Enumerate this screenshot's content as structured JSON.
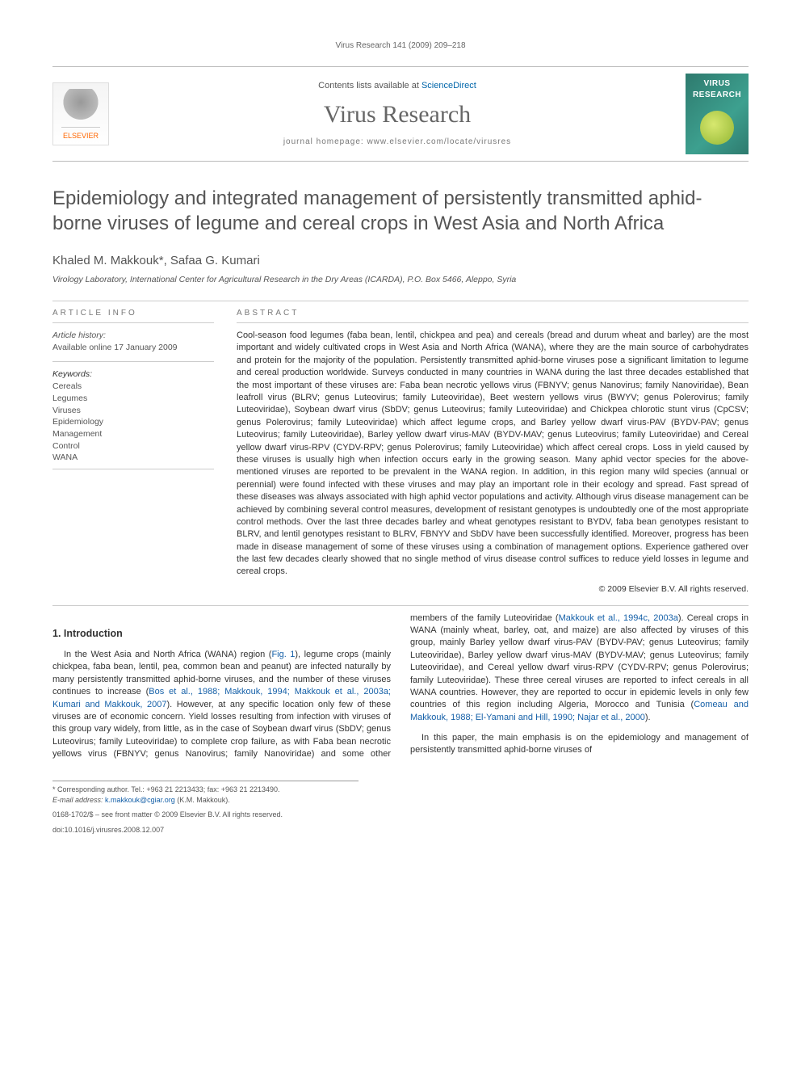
{
  "running_head": "Virus Research 141 (2009) 209–218",
  "masthead": {
    "contents_prefix": "Contents lists available at ",
    "contents_link": "ScienceDirect",
    "journal": "Virus Research",
    "homepage_prefix": "journal homepage: ",
    "homepage_url": "www.elsevier.com/locate/virusres",
    "publisher": "ELSEVIER",
    "cover_top1": "VIRUS",
    "cover_top2": "RESEARCH"
  },
  "title": "Epidemiology and integrated management of persistently transmitted aphid-borne viruses of legume and cereal crops in West Asia and North Africa",
  "authors": "Khaled M. Makkouk*, Safaa G. Kumari",
  "affiliation": "Virology Laboratory, International Center for Agricultural Research in the Dry Areas (ICARDA), P.O. Box 5466, Aleppo, Syria",
  "info": {
    "head": "ARTICLE INFO",
    "history_label": "Article history:",
    "history_text": "Available online 17 January 2009",
    "keywords_label": "Keywords:",
    "keywords": [
      "Cereals",
      "Legumes",
      "Viruses",
      "Epidemiology",
      "Management",
      "Control",
      "WANA"
    ]
  },
  "abstract": {
    "head": "ABSTRACT",
    "text": "Cool-season food legumes (faba bean, lentil, chickpea and pea) and cereals (bread and durum wheat and barley) are the most important and widely cultivated crops in West Asia and North Africa (WANA), where they are the main source of carbohydrates and protein for the majority of the population. Persistently transmitted aphid-borne viruses pose a significant limitation to legume and cereal production worldwide. Surveys conducted in many countries in WANA during the last three decades established that the most important of these viruses are: Faba bean necrotic yellows virus (FBNYV; genus Nanovirus; family Nanoviridae), Bean leafroll virus (BLRV; genus Luteovirus; family Luteoviridae), Beet western yellows virus (BWYV; genus Polerovirus; family Luteoviridae), Soybean dwarf virus (SbDV; genus Luteovirus; family Luteoviridae) and Chickpea chlorotic stunt virus (CpCSV; genus Polerovirus; family Luteoviridae) which affect legume crops, and Barley yellow dwarf virus-PAV (BYDV-PAV; genus Luteovirus; family Luteoviridae), Barley yellow dwarf virus-MAV (BYDV-MAV; genus Luteovirus; family Luteoviridae) and Cereal yellow dwarf virus-RPV (CYDV-RPV; genus Polerovirus; family Luteoviridae) which affect cereal crops. Loss in yield caused by these viruses is usually high when infection occurs early in the growing season. Many aphid vector species for the above-mentioned viruses are reported to be prevalent in the WANA region. In addition, in this region many wild species (annual or perennial) were found infected with these viruses and may play an important role in their ecology and spread. Fast spread of these diseases was always associated with high aphid vector populations and activity. Although virus disease management can be achieved by combining several control measures, development of resistant genotypes is undoubtedly one of the most appropriate control methods. Over the last three decades barley and wheat genotypes resistant to BYDV, faba bean genotypes resistant to BLRV, and lentil genotypes resistant to BLRV, FBNYV and SbDV have been successfully identified. Moreover, progress has been made in disease management of some of these viruses using a combination of management options. Experience gathered over the last few decades clearly showed that no single method of virus disease control suffices to reduce yield losses in legume and cereal crops.",
    "copyright": "© 2009 Elsevier B.V. All rights reserved."
  },
  "intro": {
    "head": "1. Introduction",
    "p1_a": "In the West Asia and North Africa (WANA) region (",
    "fig1": "Fig. 1",
    "p1_b": "), legume crops (mainly chickpea, faba bean, lentil, pea, common bean and peanut) are infected naturally by many persistently transmitted aphid-borne viruses, and the number of these viruses continues to increase (",
    "refs1": "Bos et al., 1988; Makkouk, 1994; Makkouk et al., 2003a; Kumari and Makkouk, 2007",
    "p1_c": "). However, at any specific location only few of these viruses are of economic concern. Yield losses resulting from infection with viruses of this group vary widely, from little, as in the case of Soybean dwarf virus (SbDV; genus Luteovirus; family Luteoviridae) to complete crop failure, as with Faba bean necrotic yellows virus (FBNYV; genus Nanovirus; family Nanoviridae) and some other members of the family Luteoviridae (",
    "refs2": "Makkouk et al., 1994c, 2003a",
    "p1_d": "). Cereal crops in WANA (mainly wheat, barley, oat, and maize) are also affected by viruses of this group, mainly Barley yellow dwarf virus-PAV (BYDV-PAV; genus Luteovirus; family Luteoviridae), Barley yellow dwarf virus-MAV (BYDV-MAV; genus Luteovirus; family Luteoviridae), and Cereal yellow dwarf virus-RPV (CYDV-RPV; genus Polerovirus; family Luteoviridae). These three cereal viruses are reported to infect cereals in all WANA countries. However, they are reported to occur in epidemic levels in only few countries of this region including Algeria, Morocco and Tunisia (",
    "refs3": "Comeau and Makkouk, 1988; El-Yamani and Hill, 1990; Najar et al., 2000",
    "p1_e": ").",
    "p2": "In this paper, the main emphasis is on the epidemiology and management of persistently transmitted aphid-borne viruses of"
  },
  "footnotes": {
    "corr": "* Corresponding author. Tel.: +963 21 2213433; fax: +963 21 2213490.",
    "email_label": "E-mail address: ",
    "email": "k.makkouk@cgiar.org",
    "email_tail": " (K.M. Makkouk).",
    "front": "0168-1702/$ – see front matter © 2009 Elsevier B.V. All rights reserved.",
    "doi": "doi:10.1016/j.virusres.2008.12.007"
  },
  "colors": {
    "link": "#1560a8",
    "text": "#333333",
    "muted": "#666666",
    "rule": "#cccccc",
    "elsevier": "#ff6600",
    "cover_bg": "#2e7a6e"
  },
  "typography": {
    "title_size_pt": 24,
    "body_size_pt": 11,
    "abstract_size_pt": 11,
    "journal_size_pt": 30
  }
}
